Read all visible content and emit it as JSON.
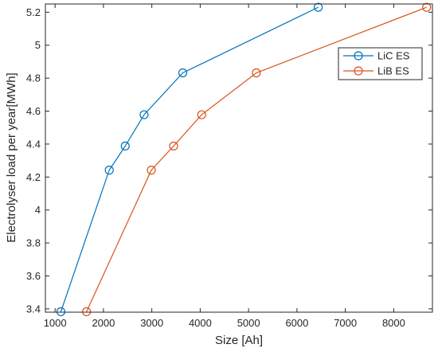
{
  "chart_data": {
    "type": "line",
    "xlabel": "Size [Ah]",
    "ylabel": "Electrolyser load per year[MWh]",
    "xlim": [
      800,
      8800
    ],
    "ylim": [
      3.38,
      5.25
    ],
    "x_ticks": [
      1000,
      2000,
      3000,
      4000,
      5000,
      6000,
      7000,
      8000
    ],
    "y_ticks": [
      3.4,
      3.6,
      3.8,
      4,
      4.2,
      4.4,
      4.6,
      4.8,
      5,
      5.2
    ],
    "x_tick_labels": [
      "1000",
      "2000",
      "3000",
      "4000",
      "5000",
      "6000",
      "7000",
      "8000"
    ],
    "y_tick_labels": [
      "3.4",
      "3.6",
      "3.8",
      "4",
      "4.2",
      "4.4",
      "4.6",
      "4.8",
      "5",
      "5.2"
    ],
    "legend_position": "top-right",
    "grid": false,
    "series": [
      {
        "name": "LiC ES",
        "color": "#0072BD",
        "marker": "open-circle",
        "points": [
          {
            "x": 1120,
            "y": 3.383
          },
          {
            "x": 2120,
            "y": 4.242
          },
          {
            "x": 2450,
            "y": 4.388
          },
          {
            "x": 2840,
            "y": 4.578
          },
          {
            "x": 3640,
            "y": 4.832
          },
          {
            "x": 6440,
            "y": 5.23
          }
        ]
      },
      {
        "name": "LiB ES",
        "color": "#D95319",
        "marker": "open-circle",
        "points": [
          {
            "x": 1650,
            "y": 3.383
          },
          {
            "x": 2990,
            "y": 4.242
          },
          {
            "x": 3450,
            "y": 4.388
          },
          {
            "x": 4030,
            "y": 4.578
          },
          {
            "x": 5160,
            "y": 4.832
          },
          {
            "x": 8680,
            "y": 5.23
          }
        ]
      }
    ]
  }
}
